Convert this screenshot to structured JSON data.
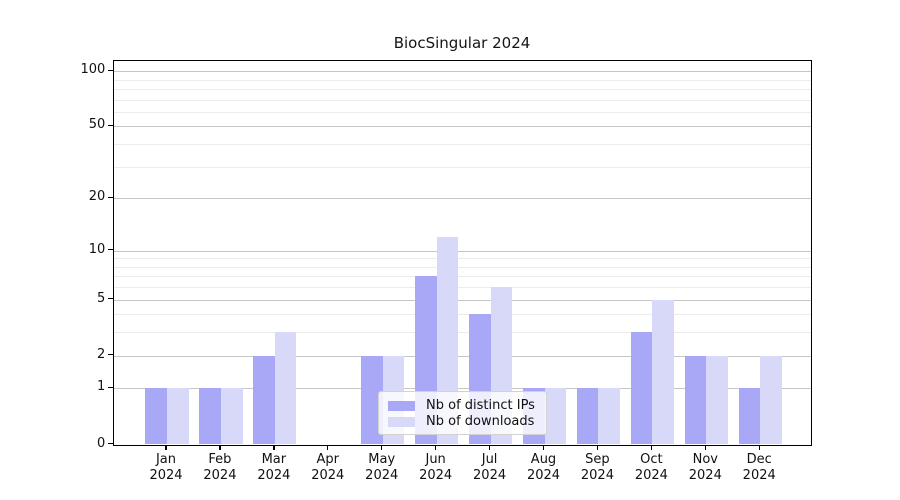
{
  "title": "BiocSingular 2024",
  "chart_data": {
    "type": "bar",
    "title": "BiocSingular 2024",
    "categories": [
      "Jan",
      "Feb",
      "Mar",
      "Apr",
      "May",
      "Jun",
      "Jul",
      "Aug",
      "Sep",
      "Oct",
      "Nov",
      "Dec"
    ],
    "x_year_label": "2024",
    "series": [
      {
        "name": "Nb of distinct IPs",
        "color": "#a8a8f6",
        "values": [
          1,
          1,
          2,
          0,
          2,
          7,
          4,
          1,
          1,
          3,
          2,
          1
        ]
      },
      {
        "name": "Nb of downloads",
        "color": "#d8d8f9",
        "values": [
          1,
          1,
          3,
          0,
          2,
          12,
          6,
          1,
          1,
          5,
          2,
          2
        ]
      }
    ],
    "xlabel": "",
    "ylabel": "",
    "y_major_ticks": [
      0,
      1,
      2,
      5,
      10,
      20,
      50,
      100
    ],
    "y_minor_gridlines": [
      3,
      4,
      6,
      7,
      8,
      9,
      30,
      40,
      60,
      70,
      80,
      90
    ],
    "yscale": "log1p",
    "ylim": [
      0,
      114
    ],
    "grid": "horizontal-major-and-minor",
    "legend_position": "lower center",
    "colors": {
      "distinct_ips_bar": "#a8a8f6",
      "downloads_bar": "#d8d8f9",
      "major_grid": "#c6c6c6",
      "minor_grid": "#ececec",
      "axis": "#000000",
      "text": "#111111"
    }
  }
}
